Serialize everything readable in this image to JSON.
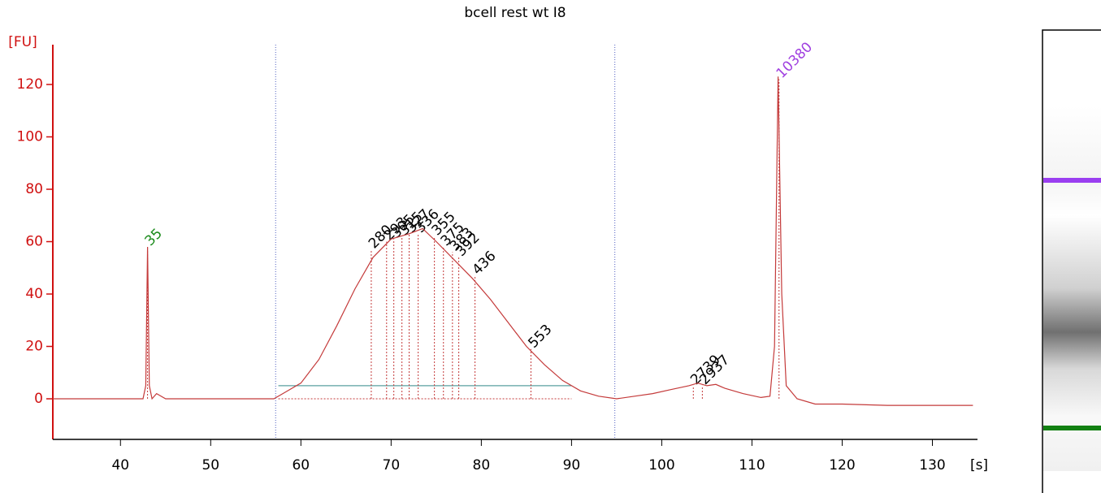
{
  "chart_data": {
    "type": "line",
    "title": "bcell rest wt I8",
    "ylabel": "[FU]",
    "xlabel": "[s]",
    "color": "#c43a3a",
    "x": [
      32.5,
      40,
      42.5,
      42.8,
      43,
      43.2,
      43.5,
      44,
      45,
      50,
      55,
      57,
      58,
      60,
      62,
      64,
      66,
      68,
      70,
      72,
      73.5,
      75,
      77,
      79,
      81,
      83,
      85,
      87,
      89,
      91,
      93,
      95,
      97,
      99,
      101,
      103,
      104,
      105,
      106,
      107,
      109,
      111,
      112,
      112.5,
      112.9,
      113.3,
      113.8,
      115,
      117,
      120,
      125,
      130,
      134.5
    ],
    "values": [
      0,
      0,
      0,
      5,
      58,
      5,
      0,
      2,
      0,
      0,
      0,
      0,
      2,
      6,
      15,
      28,
      42,
      54,
      61,
      63,
      65,
      60,
      53,
      46,
      38,
      29,
      20,
      13,
      7,
      3,
      1,
      0,
      1,
      2,
      3.5,
      5,
      6,
      5,
      5.5,
      4,
      2,
      0.5,
      1,
      20,
      123,
      40,
      5,
      0,
      -2,
      -2,
      -2.5,
      -2.5,
      -2.5
    ],
    "xlim": [
      32.5,
      135
    ],
    "ylim": [
      -15.5,
      135.2
    ],
    "xticks": [
      40,
      50,
      60,
      70,
      80,
      90,
      100,
      110,
      120,
      130
    ],
    "yticks": [
      0,
      20,
      40,
      60,
      80,
      100,
      120
    ],
    "markers": [
      57.2,
      94.8
    ],
    "region": {
      "x": [
        57.5,
        90
      ],
      "y": 5
    },
    "annotations": [
      {
        "text": "35",
        "x": 43,
        "y": 58,
        "color": "#1a8a1a"
      },
      {
        "text": "280",
        "x": 67.8,
        "y": 57,
        "color": "#000000"
      },
      {
        "text": "293",
        "x": 69.5,
        "y": 60,
        "color": "#000000"
      },
      {
        "text": "305",
        "x": 70.3,
        "y": 61,
        "color": "#000000"
      },
      {
        "text": "315",
        "x": 71.2,
        "y": 62,
        "color": "#000000"
      },
      {
        "text": "327",
        "x": 72,
        "y": 63,
        "color": "#000000"
      },
      {
        "text": "336",
        "x": 73,
        "y": 63,
        "color": "#000000"
      },
      {
        "text": "355",
        "x": 74.8,
        "y": 62,
        "color": "#000000"
      },
      {
        "text": "375",
        "x": 75.8,
        "y": 58,
        "color": "#000000"
      },
      {
        "text": "383",
        "x": 76.8,
        "y": 56,
        "color": "#000000"
      },
      {
        "text": "392",
        "x": 77.5,
        "y": 54,
        "color": "#000000"
      },
      {
        "text": "436",
        "x": 79.3,
        "y": 47,
        "color": "#000000"
      },
      {
        "text": "553",
        "x": 85.5,
        "y": 19,
        "color": "#000000"
      },
      {
        "text": "2739",
        "x": 103.5,
        "y": 5,
        "color": "#000000"
      },
      {
        "text": "2937",
        "x": 104.5,
        "y": 5,
        "color": "#000000"
      },
      {
        "text": "10380",
        "x": 113,
        "y": 122,
        "color": "#a040e0"
      }
    ]
  }
}
